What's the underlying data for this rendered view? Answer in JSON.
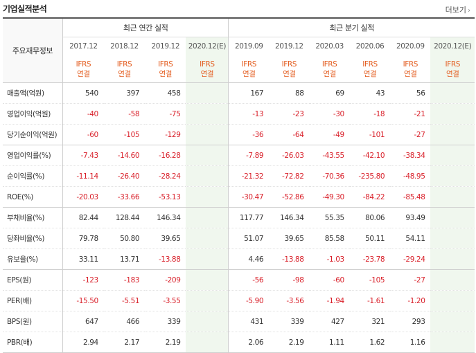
{
  "section": {
    "title": "기업실적분석",
    "more_label": "더보기"
  },
  "table": {
    "row_header_label": "주요재무정보",
    "group_annual": "최근 연간 실적",
    "group_quarter": "최근 분기 실적",
    "annual_periods": [
      "2017.12",
      "2018.12",
      "2019.12",
      "2020.12(E)"
    ],
    "quarter_periods": [
      "2019.09",
      "2019.12",
      "2020.03",
      "2020.06",
      "2020.09",
      "2020.12(E)"
    ],
    "basis_line1": "IFRS",
    "basis_line2": "연결",
    "rows": [
      {
        "label": "매출액(억원)",
        "annual": [
          "540",
          "397",
          "458",
          ""
        ],
        "quarter": [
          "167",
          "88",
          "69",
          "43",
          "56",
          ""
        ]
      },
      {
        "label": "영업이익(억원)",
        "annual": [
          "-40",
          "-58",
          "-75",
          ""
        ],
        "quarter": [
          "-13",
          "-23",
          "-30",
          "-18",
          "-21",
          ""
        ]
      },
      {
        "label": "당기순이익(억원)",
        "annual": [
          "-60",
          "-105",
          "-129",
          ""
        ],
        "quarter": [
          "-36",
          "-64",
          "-49",
          "-101",
          "-27",
          ""
        ]
      },
      {
        "label": "영업이익률(%)",
        "annual": [
          "-7.43",
          "-14.60",
          "-16.28",
          ""
        ],
        "quarter": [
          "-7.89",
          "-26.03",
          "-43.55",
          "-42.10",
          "-38.34",
          ""
        ]
      },
      {
        "label": "순이익률(%)",
        "annual": [
          "-11.14",
          "-26.40",
          "-28.24",
          ""
        ],
        "quarter": [
          "-21.32",
          "-72.82",
          "-70.36",
          "-235.80",
          "-48.95",
          ""
        ]
      },
      {
        "label": "ROE(%)",
        "annual": [
          "-20.03",
          "-33.66",
          "-53.13",
          ""
        ],
        "quarter": [
          "-30.47",
          "-52.86",
          "-49.30",
          "-84.22",
          "-85.48",
          ""
        ]
      },
      {
        "label": "부채비율(%)",
        "annual": [
          "82.44",
          "128.44",
          "146.34",
          ""
        ],
        "quarter": [
          "117.77",
          "146.34",
          "55.35",
          "80.06",
          "93.49",
          ""
        ]
      },
      {
        "label": "당좌비율(%)",
        "annual": [
          "79.78",
          "50.80",
          "39.65",
          ""
        ],
        "quarter": [
          "51.07",
          "39.65",
          "85.58",
          "50.11",
          "54.11",
          ""
        ]
      },
      {
        "label": "유보율(%)",
        "annual": [
          "33.11",
          "13.71",
          "-13.88",
          ""
        ],
        "quarter": [
          "4.46",
          "-13.88",
          "-1.03",
          "-23.78",
          "-29.24",
          ""
        ]
      },
      {
        "label": "EPS(원)",
        "annual": [
          "-123",
          "-183",
          "-209",
          ""
        ],
        "quarter": [
          "-56",
          "-98",
          "-60",
          "-105",
          "-27",
          ""
        ]
      },
      {
        "label": "PER(배)",
        "annual": [
          "-15.50",
          "-5.51",
          "-3.55",
          ""
        ],
        "quarter": [
          "-5.90",
          "-3.56",
          "-1.94",
          "-1.61",
          "-1.20",
          ""
        ]
      },
      {
        "label": "BPS(원)",
        "annual": [
          "647",
          "466",
          "339",
          ""
        ],
        "quarter": [
          "431",
          "339",
          "427",
          "321",
          "293",
          ""
        ]
      },
      {
        "label": "PBR(배)",
        "annual": [
          "2.94",
          "2.17",
          "2.19",
          ""
        ],
        "quarter": [
          "2.06",
          "2.19",
          "1.11",
          "1.62",
          "1.16",
          ""
        ]
      }
    ]
  },
  "colors": {
    "negative": "#d9202a",
    "basis": "#e35b1d",
    "estimate_bg": "#f0f7ee",
    "estimate_text": "#4aa43f"
  }
}
